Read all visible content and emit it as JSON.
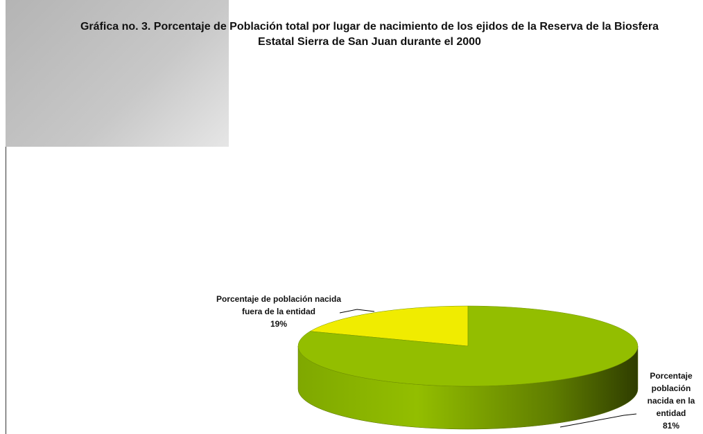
{
  "chart_data": {
    "type": "pie",
    "title": "Gráfica no. 3. Porcentaje de Población total por lugar de nacimiento de los ejidos de la Reserva de la Biosfera Estatal Sierra de San Juan durante el 2000",
    "categories": [
      "Porcentaje de población nacida fuera de la entidad",
      "Porcentaje población nacida en la entidad"
    ],
    "values": [
      19,
      81
    ],
    "value_labels": [
      "19%",
      "81%"
    ],
    "colors": [
      "#f0ec00",
      "#93be00"
    ]
  }
}
